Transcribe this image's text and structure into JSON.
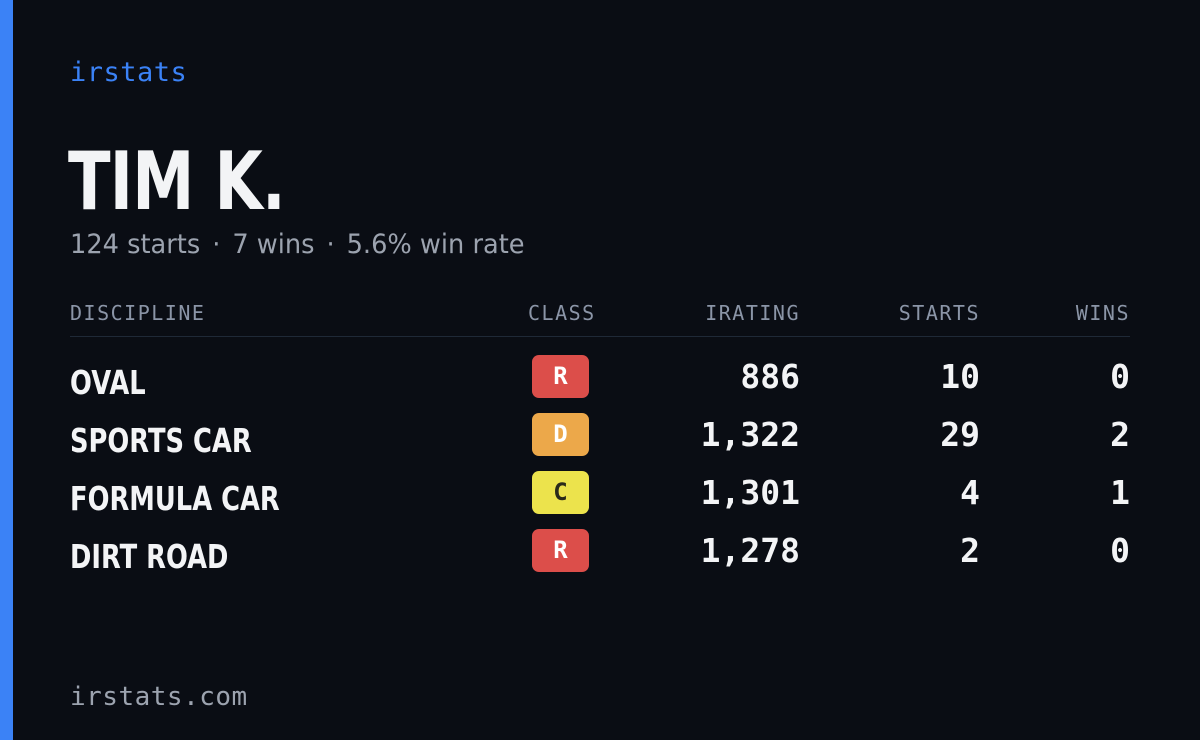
{
  "brand": "irstats",
  "driver": {
    "name": "TIM K.",
    "starts_text": "124 starts",
    "wins_text": "7 wins",
    "win_rate_text": "5.6% win rate",
    "separator": "·"
  },
  "table": {
    "headers": {
      "discipline": "DISCIPLINE",
      "class": "CLASS",
      "irating": "IRATING",
      "starts": "STARTS",
      "wins": "WINS"
    },
    "rows": [
      {
        "discipline": "OVAL",
        "class": "R",
        "class_bg": "#dc4e4a",
        "class_fg": "#ffffff",
        "irating": "886",
        "starts": "10",
        "wins": "0"
      },
      {
        "discipline": "SPORTS CAR",
        "class": "D",
        "class_bg": "#eca84a",
        "class_fg": "#ffffff",
        "irating": "1,322",
        "starts": "29",
        "wins": "2"
      },
      {
        "discipline": "FORMULA CAR",
        "class": "C",
        "class_bg": "#ece34c",
        "class_fg": "#2a2a1a",
        "irating": "1,301",
        "starts": "4",
        "wins": "1"
      },
      {
        "discipline": "DIRT ROAD",
        "class": "R",
        "class_bg": "#dc4e4a",
        "class_fg": "#ffffff",
        "irating": "1,278",
        "starts": "2",
        "wins": "0"
      }
    ]
  },
  "footer": {
    "url": "irstats.com"
  },
  "colors": {
    "accent": "#3b82f6",
    "background": "#0a0d14",
    "text_primary": "#f3f4f6",
    "text_muted": "#9ca3af"
  }
}
